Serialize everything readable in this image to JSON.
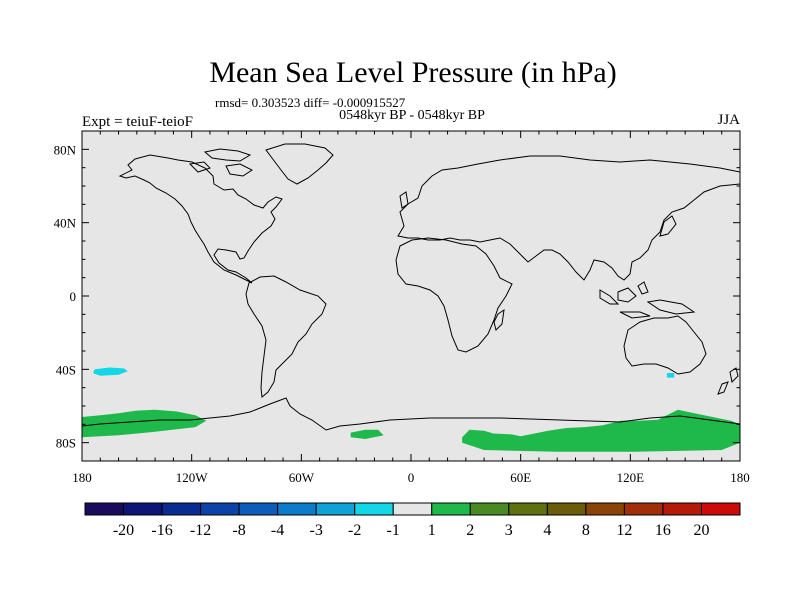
{
  "chart_data": {
    "type": "heatmap",
    "title": "Mean Sea Level Pressure (in hPa)",
    "stats_line": "rmsd= 0.303523 diff= -0.000915527",
    "subtitle": "0548kyr BP - 0548kyr BP",
    "left_label": "Expt = teiuF-teioF",
    "right_label": "JJA",
    "xlim": [
      -180,
      180
    ],
    "ylim": [
      -90,
      90
    ],
    "x_ticks": [
      {
        "value": -180,
        "label": "180"
      },
      {
        "value": -120,
        "label": "120W"
      },
      {
        "value": -60,
        "label": "60W"
      },
      {
        "value": 0,
        "label": "0"
      },
      {
        "value": 60,
        "label": "60E"
      },
      {
        "value": 120,
        "label": "120E"
      },
      {
        "value": 180,
        "label": "180"
      }
    ],
    "y_ticks": [
      {
        "value": 80,
        "label": "80N"
      },
      {
        "value": 40,
        "label": "40N"
      },
      {
        "value": 0,
        "label": "0"
      },
      {
        "value": -40,
        "label": "40S"
      },
      {
        "value": -80,
        "label": "80S"
      }
    ],
    "background_color": "#e6e6e6",
    "colorbar": {
      "colors": [
        "#1a0b5c",
        "#0e1578",
        "#0a2b90",
        "#0b43a8",
        "#0e5cb9",
        "#0b7cc9",
        "#10a2d6",
        "#13d6e6",
        "#e6e6e6",
        "#1fb84a",
        "#4a8a22",
        "#5f7010",
        "#6a5c08",
        "#8a4408",
        "#a02e08",
        "#b51a08",
        "#cc0a0a"
      ],
      "labels": [
        "-20",
        "-16",
        "-12",
        "-8",
        "-4",
        "-3",
        "-2",
        "-1",
        "1",
        "2",
        "3",
        "4",
        "8",
        "12",
        "16",
        "20"
      ]
    },
    "anomaly_regions": [
      {
        "name": "south-pacific-negative",
        "bin": "-2 to -1",
        "color": "#13d6e6",
        "lonlat": [
          [
            -173,
            -40
          ],
          [
            -165,
            -39
          ],
          [
            -157,
            -39.5
          ],
          [
            -155,
            -41
          ],
          [
            -160,
            -43
          ],
          [
            -170,
            -43.5
          ],
          [
            -174,
            -42
          ]
        ]
      },
      {
        "name": "australia-south-negative",
        "bin": "-2 to -1",
        "color": "#13d6e6",
        "lonlat": [
          [
            140,
            -42
          ],
          [
            144,
            -42
          ],
          [
            144,
            -44.5
          ],
          [
            140,
            -44.5
          ]
        ]
      },
      {
        "name": "ross-sea-positive",
        "bin": "1 to 2",
        "color": "#1fb84a",
        "lonlat": [
          [
            -180,
            -66
          ],
          [
            -170,
            -65
          ],
          [
            -160,
            -64
          ],
          [
            -150,
            -62.5
          ],
          [
            -140,
            -62
          ],
          [
            -128,
            -63
          ],
          [
            -118,
            -65
          ],
          [
            -112,
            -68
          ],
          [
            -118,
            -71.5
          ],
          [
            -140,
            -74
          ],
          [
            -160,
            -76
          ],
          [
            -180,
            -77
          ]
        ]
      },
      {
        "name": "weddell-positive",
        "bin": "1 to 2",
        "color": "#1fb84a",
        "lonlat": [
          [
            -33,
            -74.5
          ],
          [
            -25,
            -73
          ],
          [
            -18,
            -73
          ],
          [
            -15,
            -76
          ],
          [
            -25,
            -78
          ],
          [
            -33,
            -77
          ]
        ]
      },
      {
        "name": "east-antarctic-positive",
        "bin": "1 to 2",
        "color": "#1fb84a",
        "lonlat": [
          [
            28,
            -77
          ],
          [
            32,
            -73
          ],
          [
            40,
            -73.5
          ],
          [
            45,
            -75
          ],
          [
            55,
            -75.5
          ],
          [
            60,
            -76.5
          ],
          [
            75,
            -73.5
          ],
          [
            85,
            -72
          ],
          [
            95,
            -71.5
          ],
          [
            105,
            -70.5
          ],
          [
            115,
            -68
          ],
          [
            125,
            -68
          ],
          [
            135,
            -67.5
          ],
          [
            140,
            -65
          ],
          [
            146,
            -62
          ],
          [
            155,
            -64
          ],
          [
            165,
            -66
          ],
          [
            175,
            -68
          ],
          [
            180,
            -70
          ],
          [
            180,
            -80
          ],
          [
            170,
            -84
          ],
          [
            120,
            -85
          ],
          [
            80,
            -85
          ],
          [
            40,
            -84
          ],
          [
            28,
            -80
          ]
        ]
      }
    ],
    "coastline_note": "Outline of continents drawn over the field"
  }
}
